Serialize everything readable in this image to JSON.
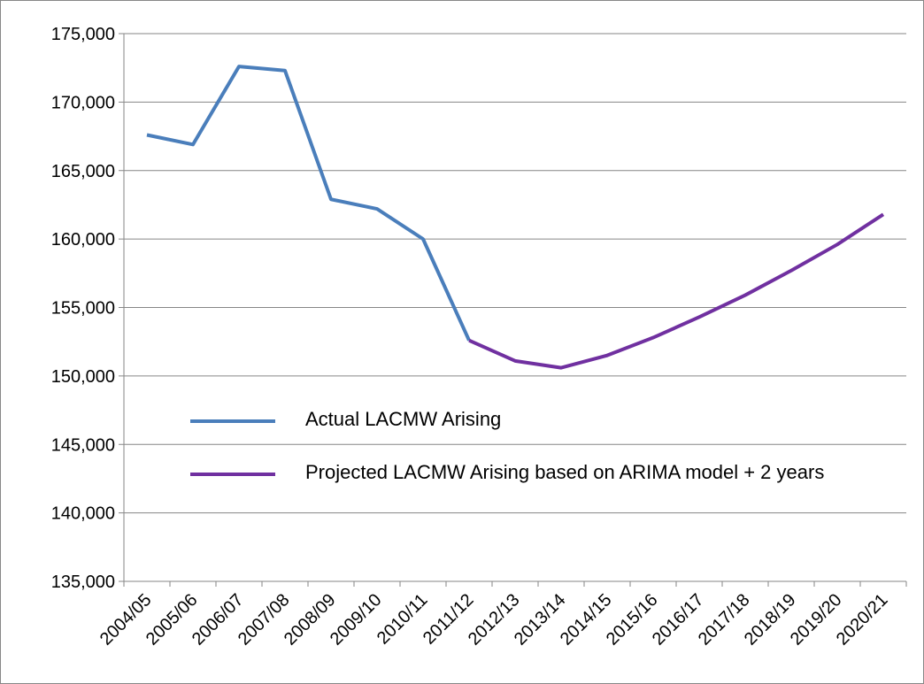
{
  "chart_data": {
    "type": "line",
    "categories": [
      "2004/05",
      "2005/06",
      "2006/07",
      "2007/08",
      "2008/09",
      "2009/10",
      "2010/11",
      "2011/12",
      "2012/13",
      "2013/14",
      "2014/15",
      "2015/16",
      "2016/17",
      "2017/18",
      "2018/19",
      "2019/20",
      "2020/21"
    ],
    "series": [
      {
        "name": "Actual LACMW Arising",
        "color": "#4a7ebb",
        "values": [
          167600,
          166900,
          172600,
          172300,
          162900,
          162200,
          160000,
          152600,
          null,
          null,
          null,
          null,
          null,
          null,
          null,
          null,
          null
        ]
      },
      {
        "name": "Projected LACMW Arising based on ARIMA model + 2 years",
        "color": "#7030a0",
        "values": [
          null,
          null,
          null,
          null,
          null,
          null,
          null,
          152600,
          151100,
          150600,
          151500,
          152800,
          154300,
          155900,
          157700,
          159600,
          161800
        ]
      }
    ],
    "ylim": [
      135000,
      175000
    ],
    "yticks": [
      {
        "value": 135000,
        "label": "135,000"
      },
      {
        "value": 140000,
        "label": "140,000"
      },
      {
        "value": 145000,
        "label": "145,000"
      },
      {
        "value": 150000,
        "label": "150,000"
      },
      {
        "value": 155000,
        "label": "155,000"
      },
      {
        "value": 160000,
        "label": "160,000"
      },
      {
        "value": 165000,
        "label": "165,000"
      },
      {
        "value": 170000,
        "label": "170,000"
      },
      {
        "value": 175000,
        "label": "175,000"
      }
    ],
    "grid": true
  }
}
